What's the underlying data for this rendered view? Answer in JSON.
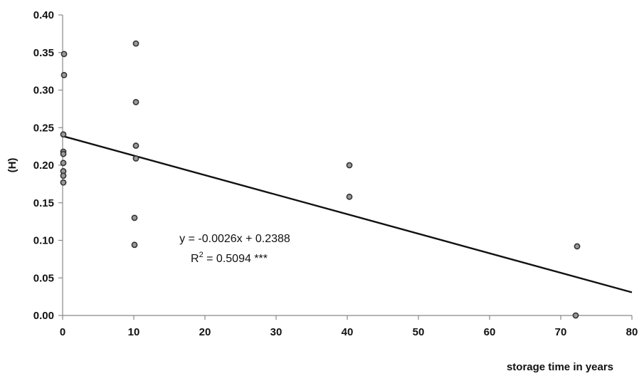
{
  "chart_data": {
    "type": "scatter",
    "title": "",
    "xlabel": "storage time in years",
    "ylabel": "(H)",
    "xlim": [
      0,
      80
    ],
    "ylim": [
      0,
      0.4
    ],
    "x_ticks": [
      0,
      10,
      20,
      30,
      40,
      50,
      60,
      70,
      80
    ],
    "y_ticks": [
      0.0,
      0.05,
      0.1,
      0.15,
      0.2,
      0.25,
      0.3,
      0.35,
      0.4
    ],
    "x_tick_labels": [
      "0",
      "10",
      "20",
      "30",
      "40",
      "50",
      "60",
      "70",
      "80"
    ],
    "y_tick_labels": [
      "0.00",
      "0.05",
      "0.10",
      "0.15",
      "0.20",
      "0.25",
      "0.30",
      "0.35",
      "0.40"
    ],
    "grid": false,
    "legend": "none",
    "points": [
      {
        "x": 0.2,
        "y": 0.348
      },
      {
        "x": 0.2,
        "y": 0.32
      },
      {
        "x": 0.1,
        "y": 0.241
      },
      {
        "x": 0.1,
        "y": 0.218
      },
      {
        "x": 0.1,
        "y": 0.215
      },
      {
        "x": 0.1,
        "y": 0.203
      },
      {
        "x": 0.1,
        "y": 0.192
      },
      {
        "x": 0.1,
        "y": 0.186
      },
      {
        "x": 0.1,
        "y": 0.177
      },
      {
        "x": 10.3,
        "y": 0.362
      },
      {
        "x": 10.3,
        "y": 0.284
      },
      {
        "x": 10.3,
        "y": 0.226
      },
      {
        "x": 10.3,
        "y": 0.209
      },
      {
        "x": 10.1,
        "y": 0.13
      },
      {
        "x": 10.1,
        "y": 0.094
      },
      {
        "x": 40.3,
        "y": 0.2
      },
      {
        "x": 40.3,
        "y": 0.158
      },
      {
        "x": 72.3,
        "y": 0.092
      },
      {
        "x": 72.1,
        "y": 0.0
      }
    ],
    "trendline": {
      "slope": -0.0026,
      "intercept": 0.2388,
      "x_range": [
        0,
        80
      ]
    },
    "annotations": {
      "equation": "y = -0.0026x + 0.2388",
      "r_squared_prefix": "R",
      "r_squared_superscript": "2",
      "r_squared_value": " = 0.5094 ***"
    },
    "colors": {
      "marker_stroke": "#333333",
      "marker_fill": "#9a9a9a",
      "line": "#111111",
      "axis": "#888888"
    }
  }
}
